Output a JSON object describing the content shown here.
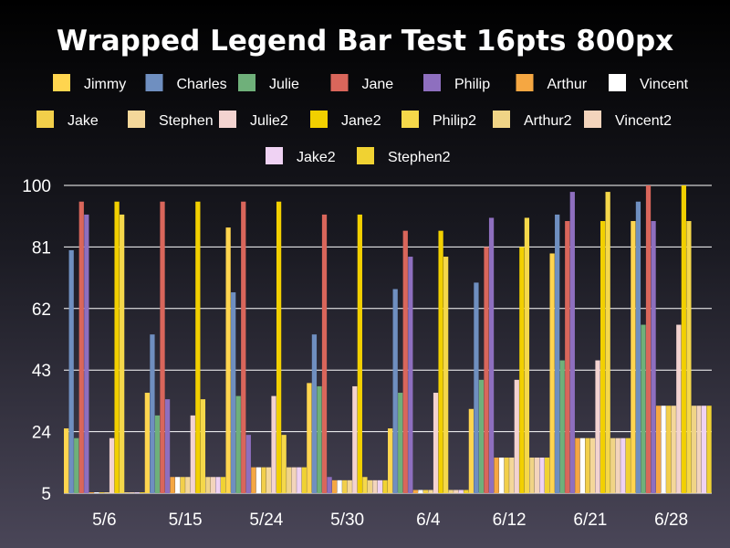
{
  "chart_data": {
    "type": "bar",
    "title": "Wrapped Legend Bar Test 16pts 800px",
    "xlabel": "",
    "ylabel": "",
    "ylim": [
      5,
      100
    ],
    "yticks": [
      5,
      24,
      43,
      62,
      81,
      100
    ],
    "grid": true,
    "legend_position": "top",
    "categories": [
      "5/6",
      "5/15",
      "5/24",
      "5/30",
      "6/4",
      "6/12",
      "6/21",
      "6/28"
    ],
    "series": [
      {
        "name": "Jimmy",
        "color": "#ffd54f",
        "values": [
          25,
          36,
          87,
          39,
          25,
          31,
          79,
          89
        ]
      },
      {
        "name": "Charles",
        "color": "#6f8fc0",
        "values": [
          80,
          54,
          67,
          54,
          68,
          70,
          91,
          95
        ]
      },
      {
        "name": "Julie",
        "color": "#6fb07a",
        "values": [
          22,
          29,
          35,
          38,
          36,
          40,
          46,
          57
        ]
      },
      {
        "name": "Jane",
        "color": "#d9665b",
        "values": [
          95,
          95,
          95,
          91,
          86,
          81,
          89,
          100
        ]
      },
      {
        "name": "Philip",
        "color": "#8e6fbf",
        "values": [
          91,
          34,
          23,
          10,
          78,
          90,
          98,
          89
        ]
      },
      {
        "name": "Arthur",
        "color": "#f5a742",
        "values": [
          5,
          10,
          13,
          9,
          6,
          16,
          22,
          32
        ]
      },
      {
        "name": "Vincent",
        "color": "#ffffff",
        "values": [
          5,
          10,
          13,
          9,
          6,
          16,
          22,
          32
        ]
      },
      {
        "name": "Jake",
        "color": "#f2cf4a",
        "values": [
          5,
          10,
          13,
          9,
          6,
          16,
          22,
          32
        ]
      },
      {
        "name": "Stephen",
        "color": "#f4d79a",
        "values": [
          5,
          10,
          13,
          9,
          6,
          16,
          22,
          32
        ]
      },
      {
        "name": "Julie2",
        "color": "#f3d3d0",
        "values": [
          22,
          29,
          35,
          38,
          36,
          40,
          46,
          57
        ]
      },
      {
        "name": "Jane2",
        "color": "#f2d000",
        "values": [
          95,
          95,
          95,
          91,
          86,
          81,
          89,
          100
        ]
      },
      {
        "name": "Philip2",
        "color": "#f5d84a",
        "values": [
          91,
          34,
          23,
          10,
          78,
          90,
          98,
          89
        ]
      },
      {
        "name": "Arthur2",
        "color": "#f0d486",
        "values": [
          5,
          10,
          13,
          9,
          6,
          16,
          22,
          32
        ]
      },
      {
        "name": "Vincent2",
        "color": "#f3d4bc",
        "values": [
          5,
          10,
          13,
          9,
          6,
          16,
          22,
          32
        ]
      },
      {
        "name": "Jake2",
        "color": "#efd2f3",
        "values": [
          5,
          10,
          13,
          9,
          6,
          16,
          22,
          32
        ]
      },
      {
        "name": "Stephen2",
        "color": "#f0d232",
        "values": [
          5,
          10,
          13,
          9,
          6,
          16,
          22,
          32
        ]
      }
    ]
  }
}
